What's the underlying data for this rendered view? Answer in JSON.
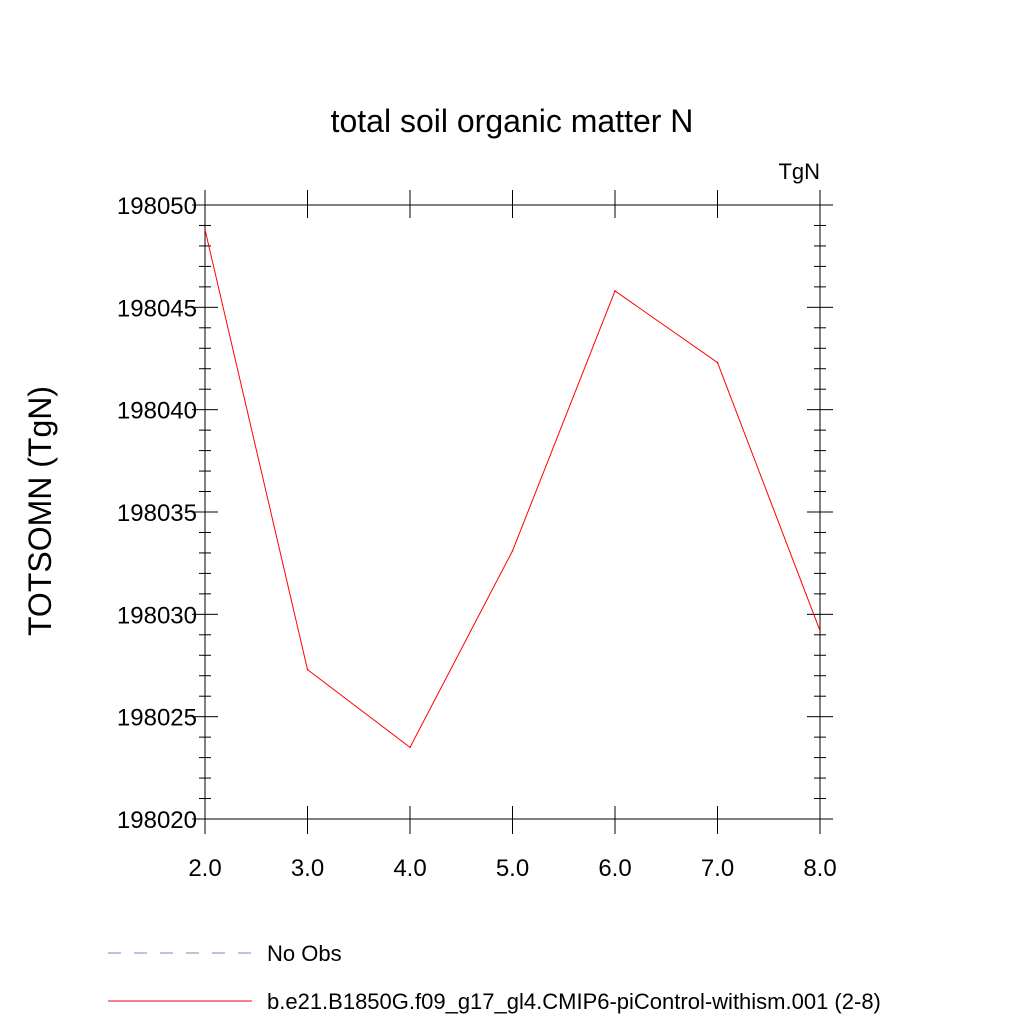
{
  "chart_data": {
    "type": "line",
    "title": "total soil organic matter N",
    "units_label": "TgN",
    "xlabel": "",
    "ylabel": "TOTSOMN  (TgN)",
    "xlim": [
      2.0,
      8.0
    ],
    "ylim": [
      198020,
      198050
    ],
    "x_ticks": [
      "2.0",
      "3.0",
      "4.0",
      "5.0",
      "6.0",
      "7.0",
      "8.0"
    ],
    "y_ticks": [
      "198020",
      "198025",
      "198030",
      "198035",
      "198040",
      "198045",
      "198050"
    ],
    "x": [
      2.0,
      3.0,
      4.0,
      5.0,
      6.0,
      7.0,
      8.0
    ],
    "series": [
      {
        "name": "b.e21.B1850G.f09_g17_gl4.CMIP6-piControl-withism.001 (2-8)",
        "color": "#ff0000",
        "style": "solid",
        "values": [
          198048.8,
          198027.3,
          198023.5,
          198033.1,
          198045.8,
          198042.3,
          198029.2
        ]
      }
    ],
    "legend": [
      {
        "label": "No Obs",
        "color": "#8a7fc0",
        "style": "dashed"
      },
      {
        "label": "b.e21.B1850G.f09_g17_gl4.CMIP6-piControl-withism.001 (2-8)",
        "color": "#ff0000",
        "style": "solid"
      }
    ],
    "legend_position": "bottom-left",
    "grid": false
  }
}
